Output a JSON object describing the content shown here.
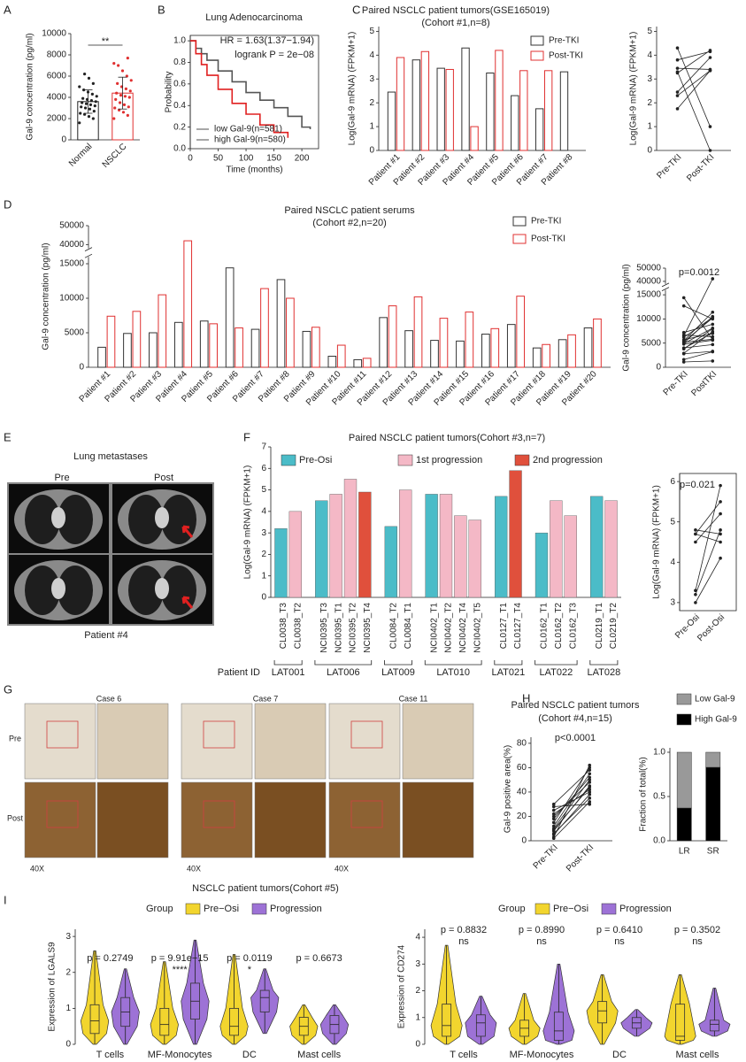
{
  "figure": {
    "panel_letters": [
      "A",
      "B",
      "C",
      "D",
      "E",
      "F",
      "G",
      "H",
      "I"
    ],
    "e": {
      "title": "Lung metastases",
      "columns": [
        "Pre",
        "Post"
      ],
      "caption": "Patient #4"
    },
    "g": {
      "cases": [
        "Case 6",
        "Case 7",
        "Case 11"
      ],
      "rows": [
        "Pre",
        "Post"
      ],
      "magnification": [
        "40X",
        "40X",
        "40X"
      ]
    },
    "i_title": "NSCLC patient tumors(Cohort #5)"
  },
  "chart_data": [
    {
      "type": "bar_dot",
      "ylabel": "Gal-9 concentration (pg/ml)",
      "categories": [
        "Normal",
        "NSCLC"
      ],
      "values": [
        3600,
        4400
      ],
      "errors": [
        1100,
        1500
      ],
      "colors": [
        "#222222",
        "#e03030"
      ],
      "points": [
        [
          1600,
          2000,
          2200,
          2400,
          2500,
          2700,
          2900,
          3000,
          3100,
          3200,
          3300,
          3400,
          3500,
          3600,
          3700,
          3800,
          3900,
          4100,
          4300,
          4500,
          4700,
          5000,
          5300,
          5800,
          6200
        ],
        [
          2000,
          2300,
          2600,
          2800,
          3000,
          3100,
          3300,
          3500,
          3800,
          4000,
          4100,
          4200,
          4400,
          4600,
          4800,
          5000,
          5300,
          5600,
          6000,
          6500,
          7000,
          7200,
          7700
        ]
      ],
      "annotations": [
        "**"
      ],
      "ylim": [
        0,
        10000
      ],
      "yticks": [
        0,
        2000,
        4000,
        6000,
        8000,
        10000
      ]
    },
    {
      "type": "km",
      "title": "Lung Adenocarcinoma",
      "xlabel": "Time (months)",
      "ylabel": "Probability",
      "annotations": [
        "HR = 1.63(1.37−1.94)",
        "logrank P = 2e−08"
      ],
      "series": [
        {
          "name": "low Gal-9(n=581)",
          "color": "#555555",
          "x": [
            0,
            10,
            20,
            30,
            50,
            75,
            100,
            125,
            150,
            175,
            200,
            215
          ],
          "values": [
            1,
            0.93,
            0.88,
            0.82,
            0.72,
            0.62,
            0.52,
            0.45,
            0.38,
            0.3,
            0.2,
            0.18
          ]
        },
        {
          "name": "high Gal-9(n=580)",
          "color": "#e02020",
          "x": [
            0,
            10,
            20,
            30,
            50,
            75,
            100,
            125,
            150,
            175
          ],
          "values": [
            1,
            0.88,
            0.78,
            0.68,
            0.55,
            0.42,
            0.32,
            0.22,
            0.15,
            0.1
          ]
        }
      ],
      "legend": "lower left",
      "xlim": [
        0,
        230
      ],
      "xticks": [
        0,
        50,
        100,
        150,
        200
      ],
      "ylim": [
        0,
        1.05
      ],
      "yticks": [
        {
          "value": 0,
          "label": "0.0"
        },
        0.2,
        0.4,
        0.6,
        0.8,
        {
          "value": 1,
          "label": "1.0"
        }
      ]
    },
    {
      "type": "bar",
      "bar_style": "outline",
      "title": "Paired NSCLC patient tumors(GSE165019)",
      "subtitle": "(Cohort #1,n=8)",
      "ylabel": "Log(Gal-9 mRNA) (FPKM+1)",
      "categories": [
        "Patient #1",
        "Patient #2",
        "Patient #3",
        "Patient #4",
        "Patient #5",
        "Patient #6",
        "Patient #7",
        "Patient #8"
      ],
      "series": [
        {
          "name": "Pre-TKI",
          "color": "#333333",
          "values": [
            2.45,
            3.8,
            3.45,
            4.3,
            3.25,
            2.3,
            1.75,
            3.3
          ]
        },
        {
          "name": "Post-TKI",
          "color": "#e03030",
          "values": [
            3.9,
            4.15,
            3.4,
            1.0,
            4.2,
            3.35,
            3.35,
            0
          ]
        }
      ],
      "legend": "upper right",
      "ylim": [
        0,
        5.2
      ],
      "yticks": [
        0,
        1,
        2,
        3,
        4,
        5
      ]
    },
    {
      "type": "paired",
      "ylabel": "Log(Gal-9 mRNA) (FPKM+1)",
      "categories": [
        "Pre-TKI",
        "Post-TKI"
      ],
      "color": "#222222",
      "pairs": [
        [
          2.45,
          3.9
        ],
        [
          3.8,
          4.15
        ],
        [
          3.45,
          3.4
        ],
        [
          4.3,
          1.0
        ],
        [
          3.25,
          4.2
        ],
        [
          2.3,
          3.35
        ],
        [
          1.75,
          3.35
        ],
        [
          3.3,
          0
        ]
      ],
      "ylim": [
        0,
        5.2
      ],
      "yticks": [
        0,
        1,
        2,
        3,
        4,
        5
      ]
    },
    {
      "type": "bar",
      "bar_style": "outline",
      "title": "Paired NSCLC patient serums",
      "subtitle": "(Cohort #2,n=20)",
      "ylabel": "Gal-9 concentration (pg/ml)",
      "categories": [
        "Patient #1",
        "Patient #2",
        "Patient #3",
        "Patient #4",
        "Patient #5",
        "Patient #6",
        "Patient #7",
        "Patient #8",
        "Patient #9",
        "Patient #10",
        "Patient #11",
        "Patient #12",
        "Patient #13",
        "Patient #14",
        "Patient #15",
        "Patient #16",
        "Patient #17",
        "Patient #18",
        "Patient #19",
        "Patient #20"
      ],
      "series": [
        {
          "name": "Pre-TKI",
          "color": "#333333",
          "values": [
            2900,
            4900,
            5000,
            6500,
            6700,
            14400,
            5500,
            12700,
            5200,
            1600,
            1100,
            7200,
            5300,
            3900,
            3800,
            4800,
            6200,
            2800,
            4000,
            5700
          ]
        },
        {
          "name": "Post-TKI",
          "color": "#e03030",
          "values": [
            7400,
            8100,
            10500,
            42000,
            6300,
            5700,
            11400,
            10000,
            5800,
            3200,
            1300,
            8900,
            10200,
            7100,
            8000,
            5600,
            10300,
            3300,
            4700,
            7000
          ]
        }
      ],
      "legend": "upper right",
      "ylim": [
        0,
        50000
      ],
      "ybreak": [
        16000,
        38000
      ],
      "yticks": [
        0,
        5000,
        10000,
        15000,
        40000,
        50000
      ]
    },
    {
      "type": "paired",
      "ylabel": "Gal-9 concentration (pg/ml)",
      "categories": [
        "Pre-TKI",
        "PostTKI"
      ],
      "color": "#222222",
      "annotations": [
        "p=0.0012"
      ],
      "pairs": [
        [
          2900,
          7400
        ],
        [
          4900,
          8100
        ],
        [
          5000,
          10500
        ],
        [
          6500,
          42000
        ],
        [
          6700,
          6300
        ],
        [
          14400,
          5700
        ],
        [
          5500,
          11400
        ],
        [
          12700,
          10000
        ],
        [
          5200,
          5800
        ],
        [
          1600,
          3200
        ],
        [
          1100,
          1300
        ],
        [
          7200,
          8900
        ],
        [
          5300,
          10200
        ],
        [
          3900,
          7100
        ],
        [
          3800,
          8000
        ],
        [
          4800,
          5600
        ],
        [
          6200,
          10300
        ],
        [
          2800,
          3300
        ],
        [
          4000,
          4700
        ],
        [
          5700,
          7000
        ]
      ],
      "ylim": [
        0,
        50000
      ],
      "ybreak": [
        16000,
        38000
      ],
      "yticks": [
        0,
        5000,
        10000,
        15000,
        40000,
        50000
      ]
    },
    {
      "type": "bar",
      "title": "Paired NSCLC patient tumors(Cohort #3,n=7)",
      "ylabel": "Log(Gal-9 mRNA) (FPKM+1)",
      "group_title": "Patient ID",
      "groups": [
        {
          "label": "LAT001",
          "categories": [
            "CL0038_T3",
            "CL0038_T2"
          ]
        },
        {
          "label": "LAT006",
          "categories": [
            "NCI0395_T3",
            "NCI0395_T1",
            "NCI0395_T2",
            "NCI0395_T4"
          ]
        },
        {
          "label": "LAT009",
          "categories": [
            "CL0084_T2",
            "CL0084_T1"
          ]
        },
        {
          "label": "LAT010",
          "categories": [
            "NCI0402_T1",
            "NCI0402_T2",
            "NCI0402_T4",
            "NCI0402_T5"
          ]
        },
        {
          "label": "LAT021",
          "categories": [
            "CL0127_T1",
            "CL0127_T4"
          ]
        },
        {
          "label": "LAT022",
          "categories": [
            "CL0162_T1",
            "CL0162_T2",
            "CL0162_T3"
          ]
        },
        {
          "label": "LAT028",
          "categories": [
            "CL0219_T1",
            "CL0219_T2"
          ]
        }
      ],
      "series": [
        {
          "name": "Pre-Osi",
          "color": "#4bbcc8",
          "values": [
            3.2,
            null,
            4.5,
            null,
            null,
            null,
            3.3,
            null,
            4.8,
            null,
            null,
            null,
            4.7,
            null,
            3.0,
            null,
            null,
            4.7,
            null
          ]
        },
        {
          "name": "1st progression",
          "color": "#f4b8c6",
          "values": [
            null,
            4.0,
            null,
            4.8,
            5.5,
            null,
            null,
            5.0,
            null,
            4.8,
            3.8,
            3.6,
            null,
            null,
            null,
            4.5,
            3.8,
            null,
            4.5
          ]
        },
        {
          "name": "2nd progression",
          "color": "#e0503c",
          "values": [
            null,
            null,
            null,
            null,
            null,
            4.9,
            null,
            null,
            null,
            null,
            null,
            null,
            null,
            5.9,
            null,
            null,
            null,
            null,
            null
          ]
        }
      ],
      "legend": "top",
      "ylim": [
        0,
        7
      ],
      "yticks": [
        0,
        1,
        2,
        3,
        4,
        5,
        6,
        7
      ]
    },
    {
      "type": "paired",
      "ylabel": "Log(Gal-9 mRNA) (FPKM+1)",
      "categories": [
        "Pre-Osi",
        "Post-Osi"
      ],
      "color": "#222222",
      "annotations": [
        "p=0.021"
      ],
      "pairs": [
        [
          3.2,
          4.8
        ],
        [
          4.5,
          5.2
        ],
        [
          3.3,
          5.9
        ],
        [
          4.8,
          4.7
        ],
        [
          4.7,
          5.5
        ],
        [
          3.0,
          4.1
        ],
        [
          4.7,
          4.5
        ]
      ],
      "ylim": [
        2.8,
        6.2
      ],
      "yticks": [
        3,
        4,
        5,
        6
      ]
    },
    {
      "type": "paired",
      "title": "Paired NSCLC patient tumors",
      "subtitle": "(Cohort #4,n=15)",
      "ylabel": "Gal-9 positive area(%)",
      "categories": [
        "Pre-TKI",
        "Post-TKI"
      ],
      "color": "#222222",
      "annotations": [
        "p<0.0001"
      ],
      "pairs": [
        [
          2,
          32
        ],
        [
          5,
          38
        ],
        [
          8,
          45
        ],
        [
          10,
          50
        ],
        [
          12,
          55
        ],
        [
          15,
          60
        ],
        [
          18,
          52
        ],
        [
          20,
          48
        ],
        [
          22,
          42
        ],
        [
          25,
          40
        ],
        [
          28,
          30
        ],
        [
          3,
          62
        ],
        [
          6,
          35
        ],
        [
          9,
          44
        ],
        [
          30,
          58
        ]
      ],
      "ylim": [
        0,
        85
      ],
      "yticks": [
        0,
        20,
        40,
        60,
        80
      ]
    },
    {
      "type": "stacked",
      "ylabel": "Fraction of total(%)",
      "categories": [
        "LR",
        "SR"
      ],
      "series": [
        {
          "name": "Low Gal-9",
          "color": "#999999",
          "values": [
            0.63,
            0.17
          ]
        },
        {
          "name": "High Gal-9",
          "color": "#000000",
          "values": [
            0.37,
            0.83
          ]
        }
      ],
      "legend": "upper left",
      "ylim": [
        0,
        1.05
      ],
      "yticks": [
        {
          "value": 0,
          "label": "0.0"
        },
        0.5,
        {
          "value": 1,
          "label": "1.0"
        }
      ]
    },
    {
      "type": "violin",
      "ylabel": "Expression of LGALS9",
      "legend_title": "Group",
      "legend": "top",
      "categories": [
        "T cells",
        "MF-Monocytes",
        "DC",
        "Mast cells"
      ],
      "p_values": [
        "p = 0.2749",
        "p = 9.91e−15",
        "p = 0.0119",
        "p = 0.6673"
      ],
      "significance": [
        null,
        "****",
        "*",
        null
      ],
      "series": [
        {
          "name": "Pre−Osi",
          "color": "#f2d52e",
          "values": [
            [
              0,
              0.3,
              0.65,
              1.1,
              2.6
            ],
            [
              0,
              0.25,
              0.55,
              1.0,
              2.3
            ],
            [
              0,
              0.25,
              0.5,
              1.0,
              2.5
            ],
            [
              0,
              0.25,
              0.5,
              0.75,
              1.1
            ]
          ]
        },
        {
          "name": "Progression",
          "color": "#9d72d6",
          "values": [
            [
              0,
              0.5,
              0.9,
              1.3,
              2.1
            ],
            [
              0,
              0.7,
              1.2,
              1.7,
              2.9
            ],
            [
              0.3,
              0.9,
              1.3,
              1.5,
              2.1
            ],
            [
              0,
              0.3,
              0.55,
              0.8,
              1.1
            ]
          ]
        }
      ],
      "ylim": [
        0,
        3.2
      ],
      "yticks": [
        0,
        1,
        2,
        3
      ]
    },
    {
      "type": "violin",
      "ylabel": "Expression of CD274",
      "legend_title": "Group",
      "legend": "top",
      "categories": [
        "T cells",
        "MF-Monocytes",
        "DC",
        "Mast cells"
      ],
      "p_values": [
        "p = 0.8832",
        "p = 0.8990",
        "p = 0.6410",
        "p = 0.3502"
      ],
      "significance": [
        "ns",
        "ns",
        "ns",
        "ns"
      ],
      "series": [
        {
          "name": "Pre−Osi",
          "color": "#f2d52e",
          "values": [
            [
              0,
              0.3,
              0.7,
              1.5,
              3.7
            ],
            [
              0,
              0.3,
              0.6,
              0.9,
              1.9
            ],
            [
              0,
              0.8,
              1.25,
              1.6,
              2.6
            ],
            [
              0,
              0.15,
              0.3,
              1.5,
              2.6
            ]
          ]
        },
        {
          "name": "Progression",
          "color": "#9d72d6",
          "values": [
            [
              0,
              0.3,
              0.8,
              1.1,
              1.8
            ],
            [
              0,
              0.15,
              0.5,
              1.2,
              3.0
            ],
            [
              0.3,
              0.6,
              0.8,
              1.0,
              1.3
            ],
            [
              0.3,
              0.5,
              0.75,
              0.9,
              2.1
            ]
          ]
        }
      ],
      "ylim": [
        0,
        4.3
      ],
      "yticks": [
        0,
        1,
        2,
        3,
        4
      ]
    }
  ]
}
